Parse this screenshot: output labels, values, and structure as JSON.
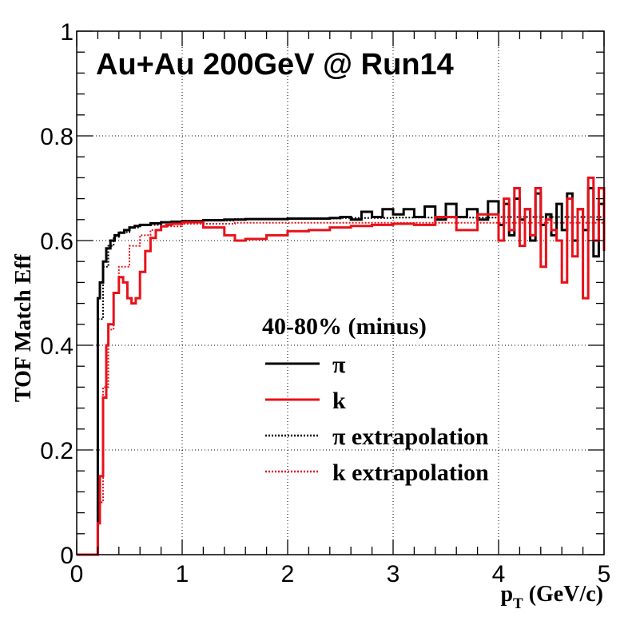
{
  "chart_data": {
    "type": "line",
    "title": "Au+Au 200GeV @ Run14",
    "xlabel": "p",
    "xlabel_sub": "T",
    "xlabel_unit": " (GeV/c)",
    "ylabel": "TOF Match Eff",
    "xlim": [
      0,
      5
    ],
    "ylim": [
      0,
      1
    ],
    "x_ticks": [
      0,
      1,
      2,
      3,
      4,
      5
    ],
    "x_tick_labels": [
      "0",
      "1",
      "2",
      "3",
      "4",
      "5"
    ],
    "y_ticks": [
      0,
      0.2,
      0.4,
      0.6,
      0.8,
      1
    ],
    "y_tick_labels": [
      "0",
      "0.2",
      "0.4",
      "0.6",
      "0.8",
      "1"
    ],
    "grid": true,
    "legend": {
      "header": "40-80% (minus)",
      "placement": "center-right"
    },
    "series": [
      {
        "name": "π",
        "color": "#000000",
        "style": "solid",
        "x": [
          0,
          0.2,
          0.2,
          0.22,
          0.25,
          0.28,
          0.32,
          0.36,
          0.4,
          0.45,
          0.5,
          0.55,
          0.6,
          0.7,
          0.8,
          0.9,
          1.0,
          1.2,
          1.4,
          1.6,
          1.8,
          2.0,
          2.2,
          2.4,
          2.5,
          2.6,
          2.7,
          2.8,
          2.9,
          3.0,
          3.1,
          3.2,
          3.3,
          3.4,
          3.5,
          3.6,
          3.7,
          3.8,
          3.9,
          4.0,
          4.05,
          4.1,
          4.15,
          4.2,
          4.25,
          4.3,
          4.35,
          4.4,
          4.45,
          4.5,
          4.55,
          4.6,
          4.65,
          4.7,
          4.75,
          4.8,
          4.85,
          4.9,
          4.95,
          5.0
        ],
        "y": [
          0,
          0,
          0.49,
          0.52,
          0.56,
          0.585,
          0.6,
          0.61,
          0.615,
          0.62,
          0.625,
          0.628,
          0.63,
          0.633,
          0.635,
          0.636,
          0.637,
          0.639,
          0.64,
          0.641,
          0.641,
          0.642,
          0.642,
          0.643,
          0.645,
          0.64,
          0.655,
          0.645,
          0.66,
          0.65,
          0.66,
          0.645,
          0.665,
          0.64,
          0.67,
          0.645,
          0.66,
          0.64,
          0.675,
          0.63,
          0.67,
          0.61,
          0.68,
          0.64,
          0.66,
          0.6,
          0.69,
          0.63,
          0.65,
          0.61,
          0.67,
          0.62,
          0.69,
          0.6,
          0.66,
          0.62,
          0.7,
          0.57,
          0.67,
          0.6
        ]
      },
      {
        "name": "k",
        "color": "#e8111a",
        "style": "solid",
        "x": [
          0,
          0.2,
          0.2,
          0.22,
          0.25,
          0.28,
          0.3,
          0.35,
          0.4,
          0.44,
          0.48,
          0.52,
          0.56,
          0.6,
          0.65,
          0.7,
          0.75,
          0.8,
          0.85,
          0.9,
          1.0,
          1.2,
          1.4,
          1.5,
          1.6,
          1.8,
          2.0,
          2.2,
          2.4,
          2.6,
          2.8,
          3.0,
          3.2,
          3.4,
          3.6,
          3.8,
          4.0,
          4.05,
          4.1,
          4.15,
          4.2,
          4.25,
          4.3,
          4.35,
          4.4,
          4.45,
          4.5,
          4.55,
          4.6,
          4.65,
          4.7,
          4.75,
          4.8,
          4.85,
          4.9,
          4.95,
          5.0
        ],
        "y": [
          0,
          0,
          0.06,
          0.15,
          0.3,
          0.4,
          0.44,
          0.5,
          0.53,
          0.52,
          0.49,
          0.48,
          0.49,
          0.54,
          0.58,
          0.605,
          0.62,
          0.627,
          0.63,
          0.632,
          0.635,
          0.625,
          0.61,
          0.6,
          0.603,
          0.61,
          0.618,
          0.62,
          0.625,
          0.628,
          0.63,
          0.632,
          0.63,
          0.645,
          0.62,
          0.65,
          0.6,
          0.68,
          0.62,
          0.7,
          0.59,
          0.66,
          0.61,
          0.7,
          0.55,
          0.64,
          0.62,
          0.6,
          0.52,
          0.68,
          0.57,
          0.66,
          0.49,
          0.72,
          0.6,
          0.7,
          0.58
        ]
      },
      {
        "name": "π extrapolation",
        "color": "#000000",
        "style": "dotted",
        "x": [
          0.2,
          0.25,
          0.3,
          0.35,
          0.4,
          0.5,
          0.6,
          0.8,
          1.0,
          1.5,
          2.0,
          2.5,
          3.0,
          3.5,
          4.0,
          4.5,
          5.0
        ],
        "y": [
          0.45,
          0.55,
          0.59,
          0.607,
          0.616,
          0.625,
          0.63,
          0.635,
          0.638,
          0.641,
          0.642,
          0.643,
          0.644,
          0.644,
          0.645,
          0.645,
          0.645
        ]
      },
      {
        "name": "k extrapolation",
        "color": "#e8111a",
        "style": "dotted",
        "x": [
          0.2,
          0.25,
          0.3,
          0.35,
          0.4,
          0.5,
          0.6,
          0.7,
          0.8,
          1.0,
          1.5,
          2.0,
          2.5,
          3.0,
          3.5,
          4.0,
          4.5,
          5.0
        ],
        "y": [
          0.1,
          0.32,
          0.43,
          0.5,
          0.55,
          0.59,
          0.61,
          0.62,
          0.627,
          0.632,
          0.634,
          0.634,
          0.634,
          0.634,
          0.634,
          0.634,
          0.634,
          0.634
        ]
      }
    ]
  }
}
